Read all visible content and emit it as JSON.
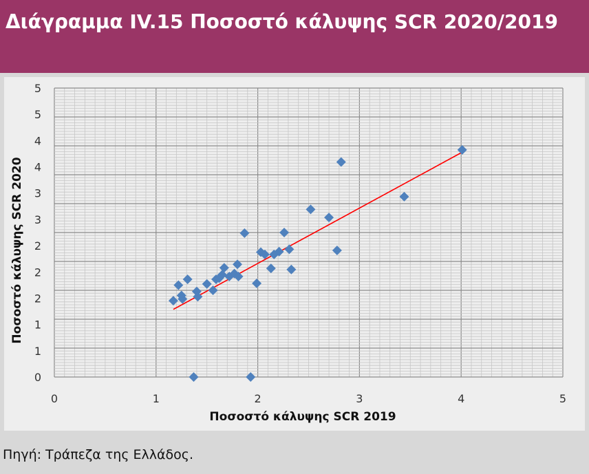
{
  "header": {
    "title": "Διάγραμμα IV.15 Ποσοστό κάλυψης SCR 2020/2019"
  },
  "footer": {
    "source": "Πηγή: Τράπεζα της Ελλάδος."
  },
  "colors": {
    "header_bg": "#9a3566",
    "point": "#4f81bd",
    "trendline": "#ff0000",
    "major_grid": "#8c8c8c",
    "minor_grid": "#c6c6c6"
  },
  "chart_data": {
    "type": "scatter",
    "title": "",
    "xlabel": "Ποσοστό κάλυψης SCR 2019",
    "ylabel": "Ποσοστό κάλυψης SCR 2020",
    "xlim": [
      0,
      5
    ],
    "ylim": [
      0,
      5
    ],
    "x_ticks": [
      "0",
      "1",
      "2",
      "3",
      "4",
      "5"
    ],
    "y_ticks": [
      "0",
      "1",
      "1",
      "2",
      "2",
      "2",
      "3",
      "3",
      "4",
      "4",
      "5",
      "5"
    ],
    "grid": true,
    "legend": "none",
    "series": [
      {
        "points": [
          [
            1.17,
            1.32
          ],
          [
            1.22,
            1.59
          ],
          [
            1.25,
            1.41
          ],
          [
            1.26,
            1.35
          ],
          [
            1.31,
            1.69
          ],
          [
            1.37,
            0.0
          ],
          [
            1.4,
            1.48
          ],
          [
            1.41,
            1.39
          ],
          [
            1.5,
            1.61
          ],
          [
            1.56,
            1.5
          ],
          [
            1.59,
            1.69
          ],
          [
            1.62,
            1.71
          ],
          [
            1.65,
            1.77
          ],
          [
            1.67,
            1.89
          ],
          [
            1.72,
            1.74
          ],
          [
            1.77,
            1.79
          ],
          [
            1.8,
            1.95
          ],
          [
            1.81,
            1.74
          ],
          [
            1.87,
            2.49
          ],
          [
            1.93,
            0.0
          ],
          [
            1.99,
            1.62
          ],
          [
            2.03,
            2.16
          ],
          [
            2.07,
            2.12
          ],
          [
            2.13,
            1.88
          ],
          [
            2.16,
            2.12
          ],
          [
            2.21,
            2.17
          ],
          [
            2.26,
            2.5
          ],
          [
            2.31,
            2.21
          ],
          [
            2.33,
            1.86
          ],
          [
            2.52,
            2.9
          ],
          [
            2.7,
            2.76
          ],
          [
            2.78,
            2.19
          ],
          [
            2.82,
            3.72
          ],
          [
            3.44,
            3.12
          ],
          [
            4.01,
            3.93
          ]
        ]
      }
    ],
    "trendline": {
      "x": [
        1.17,
        4.01
      ],
      "y": [
        1.17,
        3.89
      ]
    }
  }
}
